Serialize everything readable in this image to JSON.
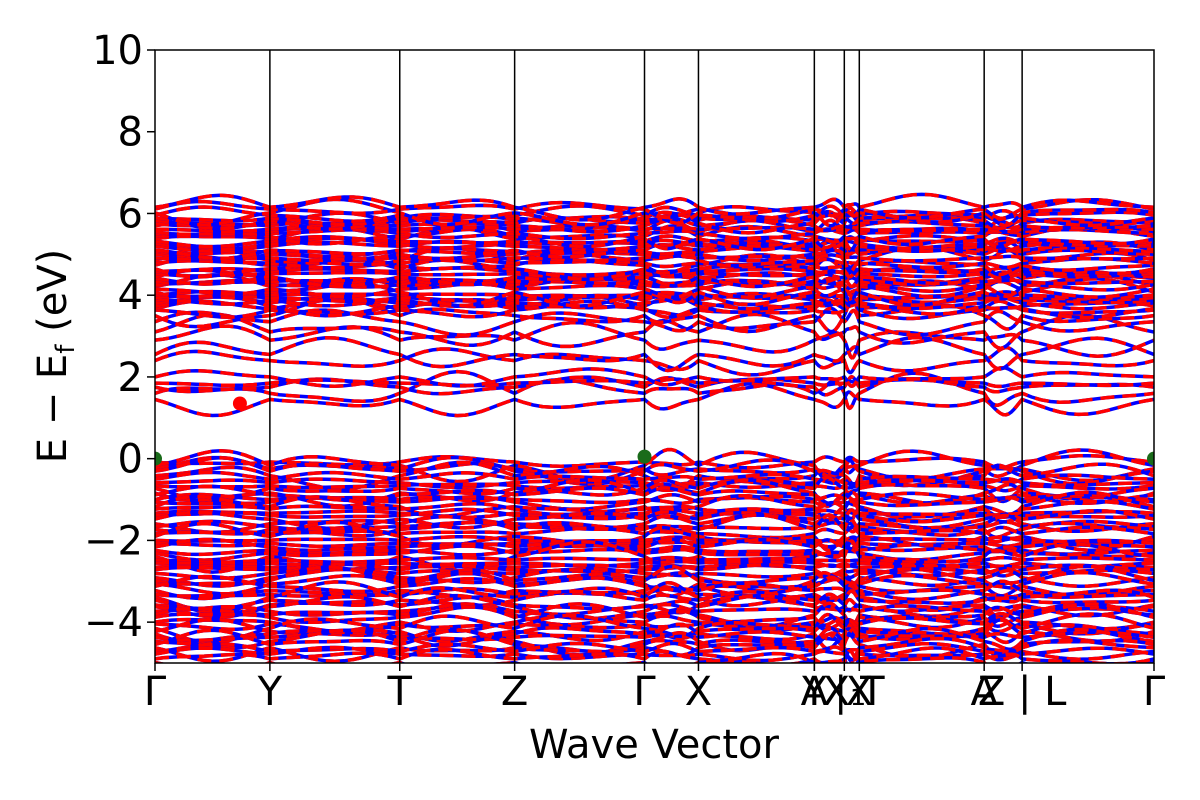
{
  "chart_data": {
    "type": "line",
    "title": "",
    "xlabel": "Wave Vector",
    "ylabel_parts": {
      "main": "E − E",
      "sub": "f",
      "unit": " (eV)"
    },
    "ylim": [
      -5,
      10
    ],
    "yticks": [
      {
        "value": -4,
        "label": "−4"
      },
      {
        "value": -2,
        "label": "−2"
      },
      {
        "value": 0,
        "label": "0"
      },
      {
        "value": 2,
        "label": "2"
      },
      {
        "value": 4,
        "label": "4"
      },
      {
        "value": 6,
        "label": "6"
      },
      {
        "value": 8,
        "label": "8"
      },
      {
        "value": 10,
        "label": "10"
      }
    ],
    "xlim": [
      0,
      1
    ],
    "kpoints": [
      {
        "x": 0.0,
        "label": "Γ"
      },
      {
        "x": 0.115,
        "label": "Y"
      },
      {
        "x": 0.245,
        "label": "T"
      },
      {
        "x": 0.36,
        "label": "Z"
      },
      {
        "x": 0.49,
        "label": "Γ"
      },
      {
        "x": 0.544,
        "label": "X"
      },
      {
        "x": 0.66,
        "label": "A"
      },
      {
        "x": 0.66,
        "label": "Y"
      },
      {
        "x": 0.69,
        "label": "X₁"
      },
      {
        "x": 0.705,
        "label": "| T"
      },
      {
        "x": 0.705,
        "label": "X"
      },
      {
        "x": 0.83,
        "label": "A"
      },
      {
        "x": 0.868,
        "label": "Z | L"
      },
      {
        "x": 1.0,
        "label": "Γ"
      }
    ],
    "vertical_lines_x": [
      0.115,
      0.245,
      0.36,
      0.49,
      0.544,
      0.66,
      0.69,
      0.705,
      0.83,
      0.868
    ],
    "series": [
      {
        "color": "#0000ff",
        "linestyle": "solid"
      },
      {
        "color": "#ff0000",
        "linestyle": "dashed"
      }
    ],
    "band_groups": [
      {
        "region": "valence",
        "energy_range": [
          -5,
          0.05
        ]
      },
      {
        "region": "conduction",
        "energy_range": [
          1.35,
          6.35
        ]
      }
    ],
    "markers": [
      {
        "x": 0.0,
        "y": 0.0,
        "color": "#1a6b1a"
      },
      {
        "x": 0.49,
        "y": 0.05,
        "color": "#1a6b1a"
      },
      {
        "x": 1.0,
        "y": 0.0,
        "color": "#1a6b1a"
      },
      {
        "x": 0.085,
        "y": 1.35,
        "color": "#ff0000"
      }
    ],
    "grid": false,
    "legend": "none"
  }
}
